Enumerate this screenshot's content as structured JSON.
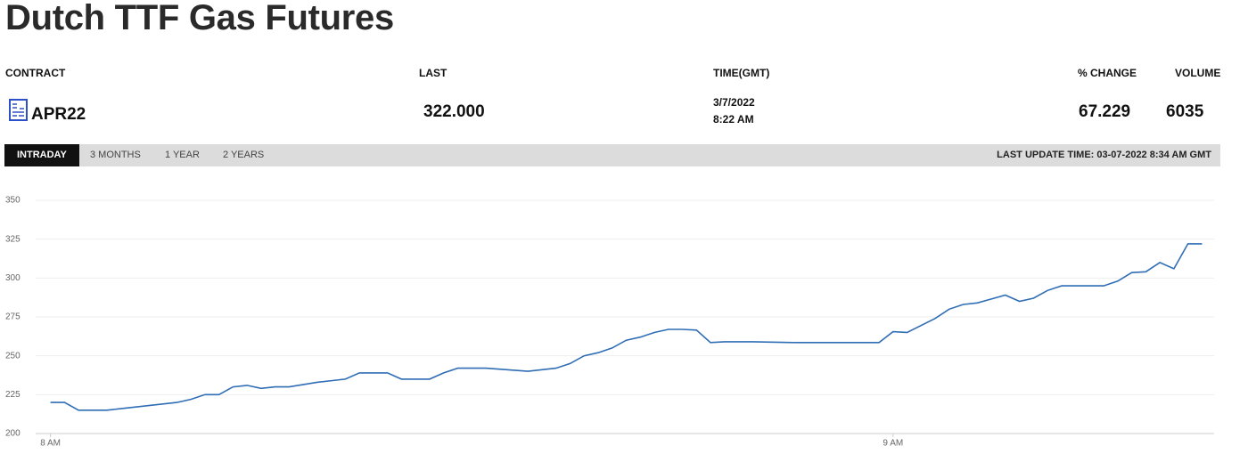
{
  "header": {
    "title": "Dutch TTF Gas Futures"
  },
  "table": {
    "columns": [
      "CONTRACT",
      "LAST",
      "TIME(GMT)",
      "% CHANGE",
      "VOLUME"
    ],
    "rows": [
      [
        "APR22",
        "322.000",
        [
          "3/7/2022",
          "8:22 AM"
        ],
        "67.229",
        "6035"
      ]
    ]
  },
  "tabs": {
    "items": [
      "INTRADAY",
      "3 MONTHS",
      "1 YEAR",
      "2 YEARS"
    ],
    "last_update": "LAST UPDATE TIME: 03-07-2022 8:34 AM GMT"
  },
  "chart_data": {
    "type": "line",
    "color": "#2f6db5",
    "grid": true,
    "x": [
      0,
      1,
      2,
      4,
      5,
      7,
      9,
      10,
      11,
      12,
      13,
      14,
      15,
      16,
      17,
      19,
      21,
      22,
      24,
      25,
      27,
      28,
      29,
      31,
      34,
      36,
      37,
      38,
      39,
      40,
      41,
      42,
      43,
      44,
      45,
      46,
      47,
      48,
      50,
      53,
      56,
      59,
      60,
      61,
      63,
      64,
      65,
      66,
      67,
      68,
      69,
      70,
      71,
      72,
      73,
      75,
      76,
      77,
      78,
      79,
      80,
      81,
      82
    ],
    "values": [
      220,
      220,
      215,
      215,
      216,
      218,
      220,
      222,
      225,
      225,
      230,
      231,
      229,
      230,
      230,
      233,
      235,
      239,
      239,
      235,
      235,
      239,
      242,
      242,
      240,
      242,
      245,
      250,
      252,
      255,
      260,
      262,
      265,
      267,
      267,
      266.5,
      258.5,
      259,
      259,
      258.5,
      258.5,
      258.5,
      265.5,
      265,
      274,
      280,
      283,
      284,
      286.5,
      289,
      285,
      287,
      292,
      295,
      295,
      295,
      298,
      303.5,
      304,
      310,
      306,
      322,
      322
    ],
    "xlim": [
      -0.8,
      82.8
    ],
    "xticks": [
      {
        "value": 0,
        "label": "8 AM"
      },
      {
        "value": 60,
        "label": "9 AM"
      }
    ],
    "ylim": [
      200,
      350
    ],
    "yticks": [
      200,
      225,
      250,
      275,
      300,
      325,
      350
    ]
  }
}
